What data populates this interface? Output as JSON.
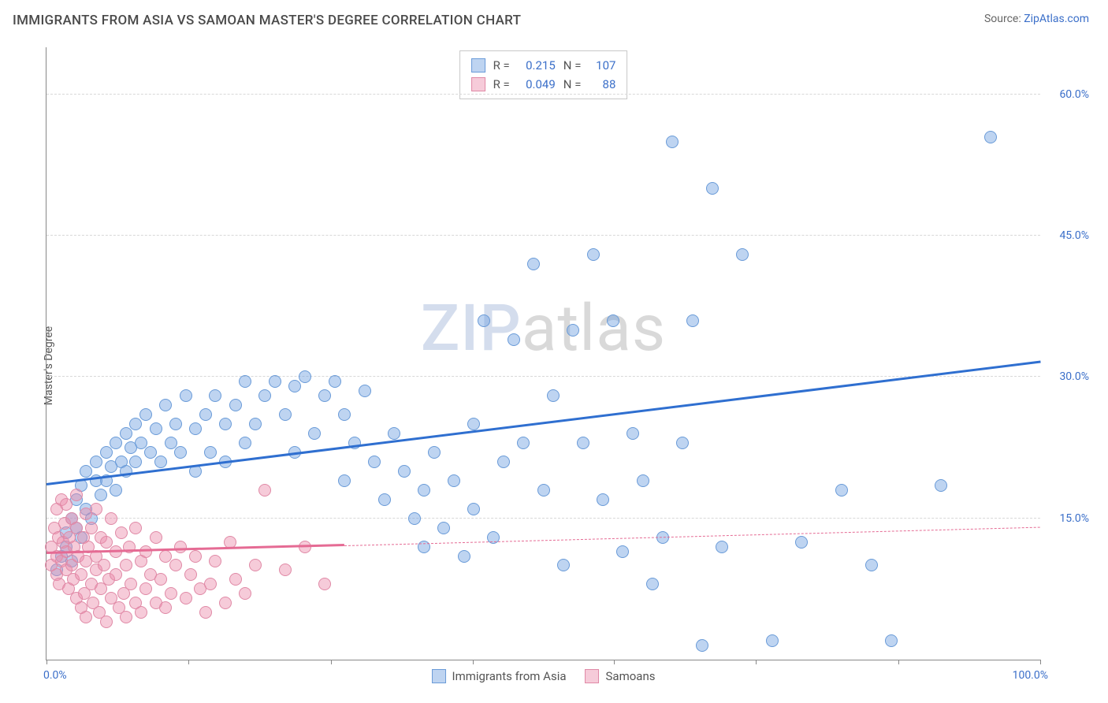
{
  "header": {
    "title": "IMMIGRANTS FROM ASIA VS SAMOAN MASTER'S DEGREE CORRELATION CHART",
    "source_label": "Source:",
    "source_name": "ZipAtlas.com"
  },
  "ylabel": "Master's Degree",
  "watermark": {
    "part1": "ZIP",
    "part2": "atlas"
  },
  "axes": {
    "xmin": 0,
    "xmax": 100,
    "ymin": 0,
    "ymax": 65,
    "ytick_values": [
      15,
      30,
      45,
      60
    ],
    "ytick_labels": [
      "15.0%",
      "30.0%",
      "45.0%",
      "60.0%"
    ],
    "xtick_values": [
      0,
      14.3,
      28.6,
      42.9,
      57.1,
      71.4,
      85.7,
      100
    ],
    "x_min_label": "0.0%",
    "x_max_label": "100.0%",
    "grid_color": "#d8d8d8",
    "axis_color": "#888888",
    "label_color": "#3b6fc9"
  },
  "series": [
    {
      "name": "Immigrants from Asia",
      "color_fill": "rgba(110,160,225,0.45)",
      "color_stroke": "#6a9bd8",
      "marker_radius": 8,
      "R": "0.215",
      "N": "107",
      "trend": {
        "x1": 0,
        "y1": 18.5,
        "x2": 100,
        "y2": 31.5,
        "color": "#2f6fd0",
        "solid_until_x": 100
      },
      "points": [
        [
          1,
          9.5
        ],
        [
          1.5,
          11
        ],
        [
          2,
          12
        ],
        [
          2,
          13.5
        ],
        [
          2.5,
          15
        ],
        [
          2.5,
          10.5
        ],
        [
          3,
          14
        ],
        [
          3,
          17
        ],
        [
          3.5,
          13
        ],
        [
          3.5,
          18.5
        ],
        [
          4,
          16
        ],
        [
          4,
          20
        ],
        [
          4.5,
          15
        ],
        [
          5,
          19
        ],
        [
          5,
          21
        ],
        [
          5.5,
          17.5
        ],
        [
          6,
          22
        ],
        [
          6,
          19
        ],
        [
          6.5,
          20.5
        ],
        [
          7,
          23
        ],
        [
          7,
          18
        ],
        [
          7.5,
          21
        ],
        [
          8,
          24
        ],
        [
          8,
          20
        ],
        [
          8.5,
          22.5
        ],
        [
          9,
          25
        ],
        [
          9,
          21
        ],
        [
          9.5,
          23
        ],
        [
          10,
          26
        ],
        [
          10.5,
          22
        ],
        [
          11,
          24.5
        ],
        [
          11.5,
          21
        ],
        [
          12,
          27
        ],
        [
          12.5,
          23
        ],
        [
          13,
          25
        ],
        [
          13.5,
          22
        ],
        [
          14,
          28
        ],
        [
          15,
          24.5
        ],
        [
          15,
          20
        ],
        [
          16,
          26
        ],
        [
          16.5,
          22
        ],
        [
          17,
          28
        ],
        [
          18,
          25
        ],
        [
          18,
          21
        ],
        [
          19,
          27
        ],
        [
          20,
          23
        ],
        [
          20,
          29.5
        ],
        [
          21,
          25
        ],
        [
          22,
          28
        ],
        [
          23,
          29.5
        ],
        [
          24,
          26
        ],
        [
          25,
          29
        ],
        [
          25,
          22
        ],
        [
          26,
          30
        ],
        [
          27,
          24
        ],
        [
          28,
          28
        ],
        [
          29,
          29.5
        ],
        [
          30,
          26
        ],
        [
          30,
          19
        ],
        [
          31,
          23
        ],
        [
          32,
          28.5
        ],
        [
          33,
          21
        ],
        [
          34,
          17
        ],
        [
          35,
          24
        ],
        [
          36,
          20
        ],
        [
          37,
          15
        ],
        [
          38,
          18
        ],
        [
          38,
          12
        ],
        [
          39,
          22
        ],
        [
          40,
          14
        ],
        [
          41,
          19
        ],
        [
          42,
          11
        ],
        [
          43,
          25
        ],
        [
          43,
          16
        ],
        [
          44,
          36
        ],
        [
          45,
          13
        ],
        [
          46,
          21
        ],
        [
          47,
          34
        ],
        [
          48,
          23
        ],
        [
          49,
          42
        ],
        [
          50,
          18
        ],
        [
          51,
          28
        ],
        [
          52,
          10
        ],
        [
          53,
          35
        ],
        [
          54,
          23
        ],
        [
          55,
          43
        ],
        [
          56,
          17
        ],
        [
          57,
          36
        ],
        [
          58,
          11.5
        ],
        [
          59,
          24
        ],
        [
          60,
          19
        ],
        [
          61,
          8
        ],
        [
          62,
          13
        ],
        [
          63,
          55
        ],
        [
          64,
          23
        ],
        [
          65,
          36
        ],
        [
          66,
          1.5
        ],
        [
          67,
          50
        ],
        [
          68,
          12
        ],
        [
          70,
          43
        ],
        [
          73,
          2
        ],
        [
          76,
          12.5
        ],
        [
          80,
          18
        ],
        [
          83,
          10
        ],
        [
          85,
          2
        ],
        [
          90,
          18.5
        ],
        [
          95,
          55.5
        ]
      ]
    },
    {
      "name": "Samoans",
      "color_fill": "rgba(235,140,170,0.45)",
      "color_stroke": "#e089a6",
      "marker_radius": 8,
      "R": "0.049",
      "N": "88",
      "trend": {
        "x1": 0,
        "y1": 11.2,
        "x2": 100,
        "y2": 14.0,
        "color": "#e56b94",
        "solid_until_x": 30
      },
      "points": [
        [
          0.5,
          10
        ],
        [
          0.5,
          12
        ],
        [
          0.8,
          14
        ],
        [
          1,
          11
        ],
        [
          1,
          9
        ],
        [
          1,
          16
        ],
        [
          1.2,
          13
        ],
        [
          1.3,
          8
        ],
        [
          1.5,
          17
        ],
        [
          1.5,
          10.5
        ],
        [
          1.7,
          12.5
        ],
        [
          1.8,
          14.5
        ],
        [
          2,
          9.5
        ],
        [
          2,
          11.5
        ],
        [
          2,
          16.5
        ],
        [
          2.2,
          7.5
        ],
        [
          2.3,
          13
        ],
        [
          2.5,
          15
        ],
        [
          2.5,
          10
        ],
        [
          2.7,
          8.5
        ],
        [
          2.8,
          12
        ],
        [
          3,
          6.5
        ],
        [
          3,
          14
        ],
        [
          3,
          17.5
        ],
        [
          3.2,
          11
        ],
        [
          3.5,
          9
        ],
        [
          3.5,
          5.5
        ],
        [
          3.7,
          13
        ],
        [
          3.8,
          7
        ],
        [
          4,
          15.5
        ],
        [
          4,
          10.5
        ],
        [
          4,
          4.5
        ],
        [
          4.2,
          12
        ],
        [
          4.5,
          8
        ],
        [
          4.5,
          14
        ],
        [
          4.7,
          6
        ],
        [
          5,
          11
        ],
        [
          5,
          16
        ],
        [
          5,
          9.5
        ],
        [
          5.3,
          5
        ],
        [
          5.5,
          13
        ],
        [
          5.5,
          7.5
        ],
        [
          5.8,
          10
        ],
        [
          6,
          4
        ],
        [
          6,
          12.5
        ],
        [
          6.3,
          8.5
        ],
        [
          6.5,
          15
        ],
        [
          6.5,
          6.5
        ],
        [
          7,
          11.5
        ],
        [
          7,
          9
        ],
        [
          7.3,
          5.5
        ],
        [
          7.5,
          13.5
        ],
        [
          7.8,
          7
        ],
        [
          8,
          10
        ],
        [
          8,
          4.5
        ],
        [
          8.3,
          12
        ],
        [
          8.5,
          8
        ],
        [
          9,
          6
        ],
        [
          9,
          14
        ],
        [
          9.5,
          10.5
        ],
        [
          9.5,
          5
        ],
        [
          10,
          11.5
        ],
        [
          10,
          7.5
        ],
        [
          10.5,
          9
        ],
        [
          11,
          13
        ],
        [
          11,
          6
        ],
        [
          11.5,
          8.5
        ],
        [
          12,
          11
        ],
        [
          12,
          5.5
        ],
        [
          12.5,
          7
        ],
        [
          13,
          10
        ],
        [
          13.5,
          12
        ],
        [
          14,
          6.5
        ],
        [
          14.5,
          9
        ],
        [
          15,
          11
        ],
        [
          15.5,
          7.5
        ],
        [
          16,
          5
        ],
        [
          16.5,
          8
        ],
        [
          17,
          10.5
        ],
        [
          18,
          6
        ],
        [
          18.5,
          12.5
        ],
        [
          19,
          8.5
        ],
        [
          20,
          7
        ],
        [
          21,
          10
        ],
        [
          22,
          18
        ],
        [
          24,
          9.5
        ],
        [
          26,
          12
        ],
        [
          28,
          8
        ]
      ]
    }
  ],
  "legend_bottom": [
    {
      "label": "Immigrants from Asia",
      "fill": "rgba(110,160,225,0.45)",
      "stroke": "#6a9bd8"
    },
    {
      "label": "Samoans",
      "fill": "rgba(235,140,170,0.45)",
      "stroke": "#e089a6"
    }
  ]
}
